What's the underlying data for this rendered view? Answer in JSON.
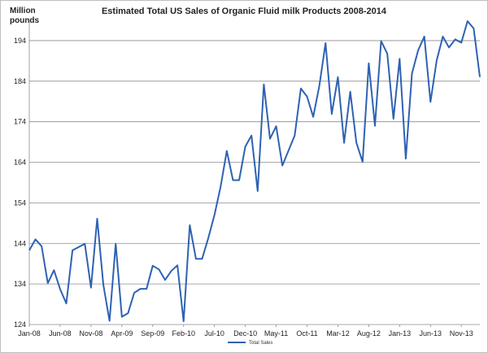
{
  "chart_data": {
    "type": "line",
    "title": "Estimated Total US Sales of Organic Fluid milk Products 2008-2014",
    "ylabel": "Million pounds",
    "xlabel": "",
    "ylim": [
      124,
      199
    ],
    "yticks": [
      124,
      134,
      144,
      154,
      164,
      174,
      184,
      194
    ],
    "xtick_labels": [
      "Jan-08",
      "Jun-08",
      "Nov-08",
      "Apr-09",
      "Sep-09",
      "Feb-10",
      "Jul-10",
      "Dec-10",
      "May-11",
      "Oct-11",
      "Mar-12",
      "Aug-12",
      "Jan-13",
      "Jun-13",
      "Nov-13"
    ],
    "grid": true,
    "legend_position": "bottom",
    "series": [
      {
        "name": "Total Sales",
        "color": "#2e62b2",
        "values": [
          142.3,
          145.0,
          143.3,
          134.2,
          137.4,
          132.7,
          129.2,
          142.3,
          143.1,
          143.9,
          133.1,
          150.1,
          133.8,
          124.9,
          143.9,
          125.9,
          126.8,
          131.8,
          132.8,
          132.8,
          138.5,
          137.6,
          135.0,
          137.2,
          138.6,
          124.8,
          148.5,
          140.2,
          140.2,
          145.3,
          151.0,
          158.0,
          166.8,
          159.6,
          159.6,
          167.9,
          170.6,
          156.9,
          183.2,
          169.8,
          172.9,
          163.2,
          166.9,
          170.6,
          182.2,
          180.2,
          175.2,
          182.9,
          193.4,
          175.9,
          185.0,
          168.8,
          181.4,
          168.8,
          164.1,
          188.4,
          173.0,
          193.9,
          190.8,
          174.7,
          189.5,
          164.9,
          185.9,
          191.6,
          195.0,
          178.9,
          189.1,
          195.0,
          192.3,
          194.3,
          193.5,
          198.8,
          197.0,
          185.0
        ]
      }
    ]
  }
}
